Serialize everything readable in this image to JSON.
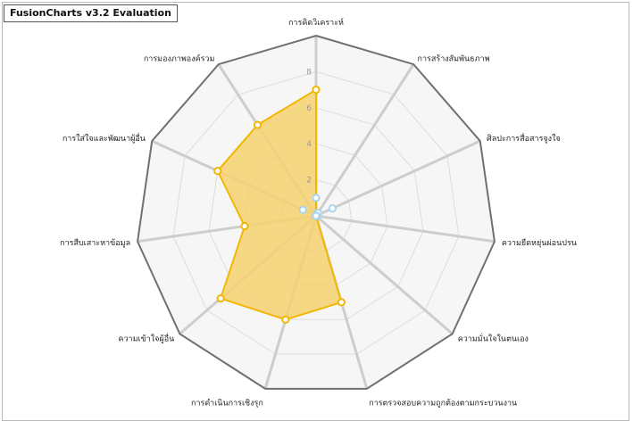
{
  "watermark": "FusionCharts v3.2 Evaluation",
  "colors": {
    "plot_fill": "#f5d170",
    "plot_line": "#f2b705",
    "anchor_fill": "#ffffff",
    "secondary_anchor": "#a8d4f0",
    "web_background": "#f6f6f6",
    "web_outline": "#707070",
    "spokes": "#cdcdcd",
    "grid": "#dddddd"
  },
  "chart_data": {
    "type": "radar",
    "ylim": [
      0,
      10
    ],
    "y_ticks": [
      "2",
      "4",
      "6",
      "8"
    ],
    "categories": [
      "การคิดวิเคราะห์",
      "การสร้างสัมพันธภาพ",
      "ศิลปะการสื่อสารจูงใจ",
      "ความยืดหยุ่นผ่อนปรน",
      "ความมั่นใจในตนเอง",
      "การตรวจสอบความถูกต้องตามกระบวนงาน",
      "การดำเนินการเชิงรุก",
      "ความเข้าใจผู้อื่น",
      "การสืบเสาะหาข้อมูล",
      "การใส่ใจและพัฒนาผู้อื่น",
      "การมองภาพองค์รวม"
    ],
    "series": [
      {
        "values": [
          7,
          0,
          0,
          0,
          0,
          5,
          6,
          7,
          4,
          6,
          6
        ]
      },
      {
        "values": [
          1,
          0.2,
          1,
          0,
          0,
          0,
          0,
          0,
          0,
          0.8,
          0
        ]
      }
    ]
  }
}
